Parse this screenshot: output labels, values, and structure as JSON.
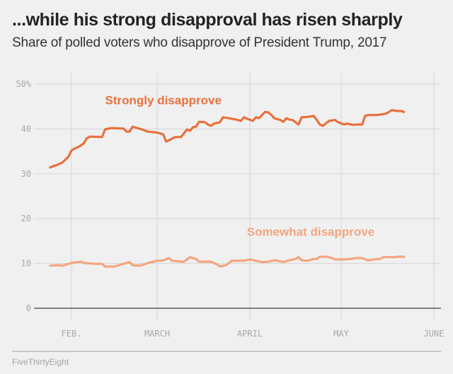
{
  "header": {
    "title": "...while his strong disapproval has risen sharply",
    "subtitle": "Share of polled voters who disapprove of President Trump, 2017"
  },
  "footer": {
    "credit": "FiveThirtyEight"
  },
  "chart_data": {
    "type": "line",
    "title": "...while his strong disapproval has risen sharply",
    "subtitle": "Share of polled voters who disapprove of President Trump, 2017",
    "xlabel": "",
    "ylabel": "",
    "x_unit": "day of year 2017",
    "xlim": [
      19,
      153
    ],
    "ylim": [
      0,
      50
    ],
    "y_ticks": [
      0,
      10,
      20,
      30,
      40,
      50
    ],
    "y_tick_labels": [
      "0",
      "10",
      "20",
      "30",
      "40",
      "50%"
    ],
    "x_ticks": [
      32,
      60,
      91,
      121,
      152
    ],
    "x_tick_labels": [
      "FEB.",
      "MARCH",
      "APRIL",
      "MAY",
      "JUNE"
    ],
    "grid": true,
    "legend": "inline-labels",
    "series": [
      {
        "name": "Strongly disapprove",
        "color": "#e8703d",
        "label_anchor": {
          "x": 43,
          "y": 45.5
        },
        "points": [
          [
            25,
            31.4
          ],
          [
            26,
            31.7
          ],
          [
            27,
            31.9
          ],
          [
            29,
            32.5
          ],
          [
            31,
            33.8
          ],
          [
            32,
            35.2
          ],
          [
            33,
            35.6
          ],
          [
            35,
            36.3
          ],
          [
            36,
            36.8
          ],
          [
            37,
            37.9
          ],
          [
            38,
            38.3
          ],
          [
            42,
            38.2
          ],
          [
            43,
            39.9
          ],
          [
            45,
            40.2
          ],
          [
            49,
            40.1
          ],
          [
            50,
            39.4
          ],
          [
            51,
            39.4
          ],
          [
            52,
            40.5
          ],
          [
            55,
            39.9
          ],
          [
            57,
            39.4
          ],
          [
            60,
            39.2
          ],
          [
            62,
            38.8
          ],
          [
            63,
            37.2
          ],
          [
            64,
            37.5
          ],
          [
            66,
            38.2
          ],
          [
            68,
            38.2
          ],
          [
            70,
            39.9
          ],
          [
            71,
            39.6
          ],
          [
            72,
            40.4
          ],
          [
            73,
            40.5
          ],
          [
            74,
            41.6
          ],
          [
            76,
            41.5
          ],
          [
            77,
            41.0
          ],
          [
            78,
            40.7
          ],
          [
            79,
            41.2
          ],
          [
            81,
            41.5
          ],
          [
            82,
            42.6
          ],
          [
            84,
            42.4
          ],
          [
            87,
            42.0
          ],
          [
            88,
            41.8
          ],
          [
            89,
            42.6
          ],
          [
            90,
            42.3
          ],
          [
            92,
            41.8
          ],
          [
            93,
            42.6
          ],
          [
            94,
            42.4
          ],
          [
            96,
            43.8
          ],
          [
            97,
            43.7
          ],
          [
            98,
            43.2
          ],
          [
            99,
            42.4
          ],
          [
            101,
            42.0
          ],
          [
            102,
            41.6
          ],
          [
            103,
            42.4
          ],
          [
            104,
            42.1
          ],
          [
            105,
            42.0
          ],
          [
            106,
            41.5
          ],
          [
            107,
            41.0
          ],
          [
            108,
            42.6
          ],
          [
            110,
            42.7
          ],
          [
            112,
            42.9
          ],
          [
            113,
            42.0
          ],
          [
            114,
            41.0
          ],
          [
            115,
            40.7
          ],
          [
            117,
            41.8
          ],
          [
            119,
            42.0
          ],
          [
            120,
            41.5
          ],
          [
            122,
            41.0
          ],
          [
            123,
            41.2
          ],
          [
            125,
            40.9
          ],
          [
            126,
            41.0
          ],
          [
            128,
            41.0
          ],
          [
            129,
            42.9
          ],
          [
            130,
            43.1
          ],
          [
            133,
            43.1
          ],
          [
            136,
            43.4
          ],
          [
            137,
            43.8
          ],
          [
            138,
            44.2
          ],
          [
            140,
            44.0
          ],
          [
            141,
            44.0
          ],
          [
            142,
            43.8
          ]
        ]
      },
      {
        "name": "Somewhat disapprove",
        "color": "#f4a57f",
        "label_anchor": {
          "x": 90,
          "y": 16.2
        },
        "points": [
          [
            25,
            9.5
          ],
          [
            28,
            9.6
          ],
          [
            29,
            9.5
          ],
          [
            32,
            10.1
          ],
          [
            35,
            10.4
          ],
          [
            36,
            10.1
          ],
          [
            40,
            9.9
          ],
          [
            42,
            9.9
          ],
          [
            43,
            9.3
          ],
          [
            46,
            9.3
          ],
          [
            49,
            9.9
          ],
          [
            51,
            10.3
          ],
          [
            52,
            9.6
          ],
          [
            54,
            9.5
          ],
          [
            55,
            9.6
          ],
          [
            57,
            10.1
          ],
          [
            60,
            10.6
          ],
          [
            62,
            10.7
          ],
          [
            64,
            11.2
          ],
          [
            65,
            10.6
          ],
          [
            68,
            10.4
          ],
          [
            69,
            10.4
          ],
          [
            71,
            11.4
          ],
          [
            73,
            11.0
          ],
          [
            74,
            10.4
          ],
          [
            77,
            10.4
          ],
          [
            78,
            10.4
          ],
          [
            80,
            9.8
          ],
          [
            81,
            9.3
          ],
          [
            83,
            9.6
          ],
          [
            85,
            10.6
          ],
          [
            87,
            10.6
          ],
          [
            89,
            10.6
          ],
          [
            91,
            10.9
          ],
          [
            93,
            10.6
          ],
          [
            95,
            10.3
          ],
          [
            97,
            10.4
          ],
          [
            99,
            10.7
          ],
          [
            100,
            10.6
          ],
          [
            102,
            10.3
          ],
          [
            104,
            10.7
          ],
          [
            106,
            11.0
          ],
          [
            107,
            11.4
          ],
          [
            108,
            10.7
          ],
          [
            110,
            10.6
          ],
          [
            112,
            11.0
          ],
          [
            113,
            11.0
          ],
          [
            114,
            11.5
          ],
          [
            116,
            11.5
          ],
          [
            118,
            11.2
          ],
          [
            119,
            10.9
          ],
          [
            122,
            10.9
          ],
          [
            124,
            11.0
          ],
          [
            126,
            11.2
          ],
          [
            128,
            11.2
          ],
          [
            130,
            10.7
          ],
          [
            132,
            10.9
          ],
          [
            134,
            11.0
          ],
          [
            135,
            11.4
          ],
          [
            137,
            11.4
          ],
          [
            139,
            11.4
          ],
          [
            140,
            11.5
          ],
          [
            142,
            11.5
          ]
        ]
      }
    ]
  }
}
